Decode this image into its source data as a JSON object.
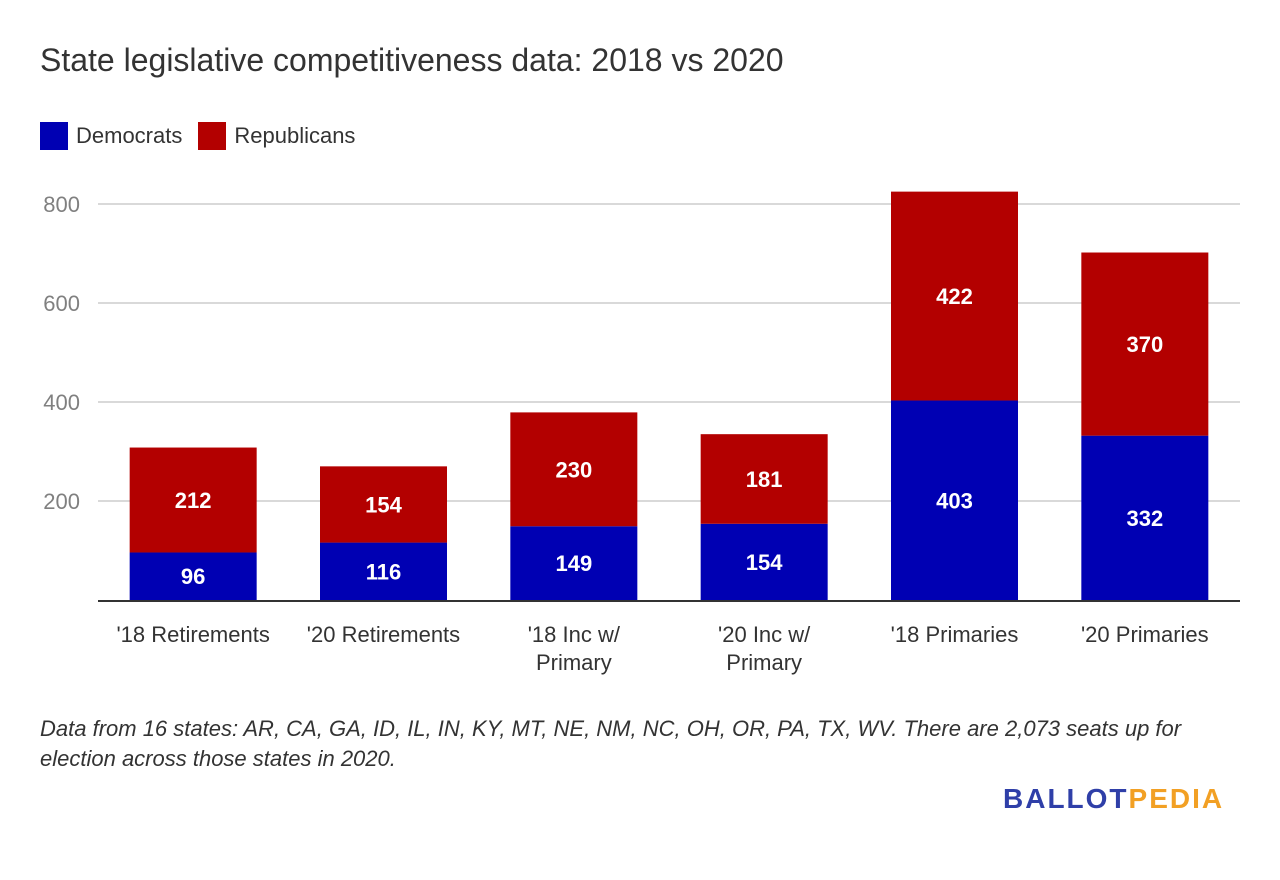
{
  "chart_data": {
    "type": "bar",
    "stacked": true,
    "title": "State legislative competitiveness data: 2018 vs 2020",
    "categories": [
      "'18 Retirements",
      "'20 Retirements",
      "'18 Inc w/ Primary",
      "'20 Inc w/ Primary",
      "'18 Primaries",
      "'20 Primaries"
    ],
    "series": [
      {
        "name": "Democrats",
        "color": "#0000b3",
        "values": [
          96,
          116,
          149,
          154,
          403,
          332
        ]
      },
      {
        "name": "Republicans",
        "color": "#b30000",
        "values": [
          212,
          154,
          230,
          181,
          422,
          370
        ]
      }
    ],
    "ylim": [
      0,
      800
    ],
    "yticks": [
      200,
      400,
      600,
      800
    ],
    "grid": true,
    "legend": "top-left",
    "data_labels": true
  },
  "note": "Data from 16 states: AR, CA, GA, ID, IL, IN, KY, MT, NE, NM, NC, OH, OR, PA, TX, WV. There are 2,073 seats up for election across those states in 2020.",
  "logo": {
    "part1": "BALLOT",
    "part2": "PEDIA"
  }
}
